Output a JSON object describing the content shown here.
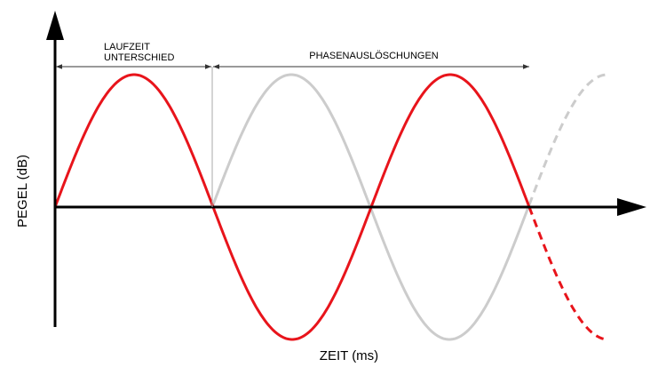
{
  "annotations": {
    "delay": [
      "LAUFZEIT",
      "UNTERSCHIED"
    ],
    "cancellation": "PHASENAUSLÖSCHUNGEN"
  },
  "axes": {
    "y_label": "PEGEL (dB)",
    "x_label": "ZEIT (ms)"
  }
}
